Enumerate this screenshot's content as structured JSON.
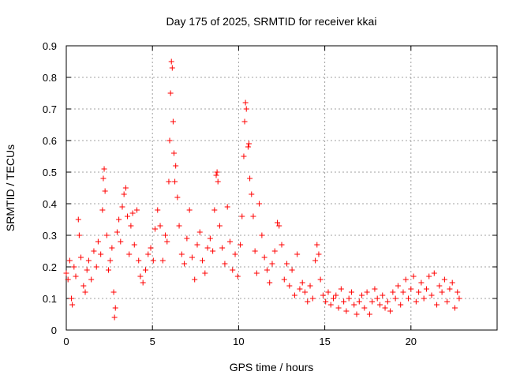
{
  "chart_data": {
    "type": "scatter",
    "title": "Day 175 of 2025, SRMTID for receiver kkai",
    "xlabel": "GPS time / hours",
    "ylabel": "SRMTID / TECUs",
    "xlim": [
      0,
      25
    ],
    "ylim": [
      0,
      0.9
    ],
    "xticks": [
      "0",
      "5",
      "10",
      "15",
      "20"
    ],
    "xtick_values": [
      0,
      5,
      10,
      15,
      20
    ],
    "yticks": [
      "0",
      "0.1",
      "0.2",
      "0.3",
      "0.4",
      "0.5",
      "0.6",
      "0.7",
      "0.8",
      "0.9"
    ],
    "ytick_values": [
      0,
      0.1,
      0.2,
      0.3,
      0.4,
      0.5,
      0.6,
      0.7,
      0.8,
      0.9
    ],
    "grid": true,
    "marker": "plus",
    "color": "#ff0000",
    "series": [
      {
        "name": "SRMTID",
        "points": [
          [
            0.0,
            0.18
          ],
          [
            0.1,
            0.16
          ],
          [
            0.2,
            0.22
          ],
          [
            0.3,
            0.1
          ],
          [
            0.35,
            0.08
          ],
          [
            0.45,
            0.2
          ],
          [
            0.55,
            0.17
          ],
          [
            0.7,
            0.35
          ],
          [
            0.75,
            0.3
          ],
          [
            0.85,
            0.23
          ],
          [
            1.0,
            0.14
          ],
          [
            1.1,
            0.12
          ],
          [
            1.2,
            0.19
          ],
          [
            1.3,
            0.22
          ],
          [
            1.45,
            0.16
          ],
          [
            1.6,
            0.25
          ],
          [
            1.75,
            0.2
          ],
          [
            1.85,
            0.28
          ],
          [
            2.0,
            0.24
          ],
          [
            2.1,
            0.38
          ],
          [
            2.15,
            0.48
          ],
          [
            2.2,
            0.51
          ],
          [
            2.25,
            0.44
          ],
          [
            2.35,
            0.3
          ],
          [
            2.45,
            0.19
          ],
          [
            2.55,
            0.22
          ],
          [
            2.65,
            0.26
          ],
          [
            2.75,
            0.12
          ],
          [
            2.8,
            0.04
          ],
          [
            2.85,
            0.07
          ],
          [
            2.95,
            0.31
          ],
          [
            3.05,
            0.35
          ],
          [
            3.15,
            0.28
          ],
          [
            3.25,
            0.39
          ],
          [
            3.35,
            0.43
          ],
          [
            3.45,
            0.45
          ],
          [
            3.55,
            0.36
          ],
          [
            3.65,
            0.24
          ],
          [
            3.75,
            0.33
          ],
          [
            3.85,
            0.37
          ],
          [
            3.95,
            0.27
          ],
          [
            4.1,
            0.38
          ],
          [
            4.2,
            0.22
          ],
          [
            4.3,
            0.17
          ],
          [
            4.45,
            0.15
          ],
          [
            4.6,
            0.19
          ],
          [
            4.75,
            0.24
          ],
          [
            4.9,
            0.26
          ],
          [
            5.05,
            0.22
          ],
          [
            5.15,
            0.32
          ],
          [
            5.3,
            0.38
          ],
          [
            5.45,
            0.33
          ],
          [
            5.6,
            0.22
          ],
          [
            5.75,
            0.3
          ],
          [
            5.85,
            0.28
          ],
          [
            5.95,
            0.47
          ],
          [
            6.0,
            0.6
          ],
          [
            6.05,
            0.75
          ],
          [
            6.1,
            0.85
          ],
          [
            6.15,
            0.83
          ],
          [
            6.2,
            0.66
          ],
          [
            6.25,
            0.56
          ],
          [
            6.3,
            0.47
          ],
          [
            6.35,
            0.52
          ],
          [
            6.45,
            0.42
          ],
          [
            6.55,
            0.33
          ],
          [
            6.7,
            0.24
          ],
          [
            6.85,
            0.21
          ],
          [
            7.0,
            0.29
          ],
          [
            7.15,
            0.38
          ],
          [
            7.3,
            0.23
          ],
          [
            7.45,
            0.16
          ],
          [
            7.6,
            0.27
          ],
          [
            7.75,
            0.31
          ],
          [
            7.9,
            0.22
          ],
          [
            8.05,
            0.18
          ],
          [
            8.2,
            0.26
          ],
          [
            8.35,
            0.29
          ],
          [
            8.5,
            0.25
          ],
          [
            8.6,
            0.38
          ],
          [
            8.7,
            0.49
          ],
          [
            8.75,
            0.5
          ],
          [
            8.8,
            0.47
          ],
          [
            8.9,
            0.33
          ],
          [
            9.05,
            0.26
          ],
          [
            9.2,
            0.21
          ],
          [
            9.35,
            0.39
          ],
          [
            9.5,
            0.28
          ],
          [
            9.65,
            0.19
          ],
          [
            9.8,
            0.24
          ],
          [
            9.95,
            0.17
          ],
          [
            10.1,
            0.27
          ],
          [
            10.2,
            0.36
          ],
          [
            10.3,
            0.55
          ],
          [
            10.35,
            0.66
          ],
          [
            10.4,
            0.72
          ],
          [
            10.45,
            0.7
          ],
          [
            10.55,
            0.58
          ],
          [
            10.6,
            0.59
          ],
          [
            10.65,
            0.48
          ],
          [
            10.75,
            0.43
          ],
          [
            10.85,
            0.36
          ],
          [
            10.95,
            0.25
          ],
          [
            11.05,
            0.18
          ],
          [
            11.2,
            0.4
          ],
          [
            11.35,
            0.3
          ],
          [
            11.5,
            0.23
          ],
          [
            11.65,
            0.19
          ],
          [
            11.8,
            0.15
          ],
          [
            11.95,
            0.21
          ],
          [
            12.1,
            0.25
          ],
          [
            12.25,
            0.34
          ],
          [
            12.35,
            0.33
          ],
          [
            12.5,
            0.27
          ],
          [
            12.65,
            0.16
          ],
          [
            12.8,
            0.21
          ],
          [
            12.95,
            0.14
          ],
          [
            13.1,
            0.19
          ],
          [
            13.25,
            0.11
          ],
          [
            13.4,
            0.24
          ],
          [
            13.55,
            0.13
          ],
          [
            13.7,
            0.15
          ],
          [
            13.85,
            0.12
          ],
          [
            14.0,
            0.09
          ],
          [
            14.15,
            0.14
          ],
          [
            14.3,
            0.1
          ],
          [
            14.45,
            0.22
          ],
          [
            14.55,
            0.27
          ],
          [
            14.65,
            0.24
          ],
          [
            14.75,
            0.16
          ],
          [
            14.9,
            0.11
          ],
          [
            15.05,
            0.09
          ],
          [
            15.2,
            0.12
          ],
          [
            15.35,
            0.08
          ],
          [
            15.5,
            0.1
          ],
          [
            15.65,
            0.11
          ],
          [
            15.8,
            0.07
          ],
          [
            15.95,
            0.13
          ],
          [
            16.1,
            0.09
          ],
          [
            16.25,
            0.06
          ],
          [
            16.4,
            0.1
          ],
          [
            16.55,
            0.12
          ],
          [
            16.7,
            0.08
          ],
          [
            16.85,
            0.05
          ],
          [
            17.0,
            0.09
          ],
          [
            17.15,
            0.11
          ],
          [
            17.3,
            0.07
          ],
          [
            17.45,
            0.12
          ],
          [
            17.6,
            0.05
          ],
          [
            17.75,
            0.09
          ],
          [
            17.9,
            0.13
          ],
          [
            18.05,
            0.1
          ],
          [
            18.2,
            0.08
          ],
          [
            18.35,
            0.11
          ],
          [
            18.5,
            0.07
          ],
          [
            18.65,
            0.09
          ],
          [
            18.8,
            0.06
          ],
          [
            18.95,
            0.12
          ],
          [
            19.1,
            0.1
          ],
          [
            19.25,
            0.14
          ],
          [
            19.4,
            0.08
          ],
          [
            19.55,
            0.12
          ],
          [
            19.7,
            0.16
          ],
          [
            19.85,
            0.1
          ],
          [
            20.0,
            0.13
          ],
          [
            20.15,
            0.17
          ],
          [
            20.3,
            0.09
          ],
          [
            20.45,
            0.12
          ],
          [
            20.6,
            0.15
          ],
          [
            20.75,
            0.1
          ],
          [
            20.9,
            0.13
          ],
          [
            21.05,
            0.17
          ],
          [
            21.2,
            0.11
          ],
          [
            21.35,
            0.18
          ],
          [
            21.5,
            0.08
          ],
          [
            21.65,
            0.14
          ],
          [
            21.8,
            0.12
          ],
          [
            21.95,
            0.16
          ],
          [
            22.1,
            0.09
          ],
          [
            22.25,
            0.13
          ],
          [
            22.4,
            0.15
          ],
          [
            22.55,
            0.07
          ],
          [
            22.7,
            0.12
          ],
          [
            22.8,
            0.1
          ]
        ]
      }
    ]
  }
}
